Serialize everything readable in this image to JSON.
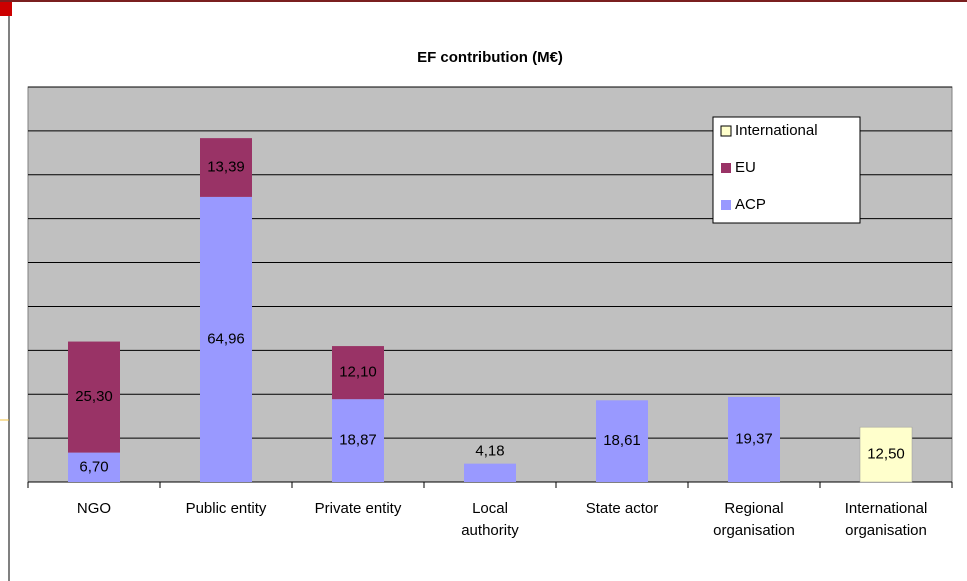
{
  "chart_data": {
    "type": "stacked_bar",
    "title": "EF contribution (M€)",
    "categories": [
      "NGO",
      "Public entity",
      "Private entity",
      "Local\nauthority",
      "State actor",
      "Regional\norganisation",
      "International\norganisation"
    ],
    "series": [
      {
        "name": "ACP",
        "color": "#9999ff",
        "values": [
          6.7,
          64.96,
          18.87,
          4.18,
          18.61,
          19.37,
          null
        ],
        "value_labels": [
          "6,70",
          "64,96",
          "18,87",
          "4,18",
          "18,61",
          "19,37",
          null
        ]
      },
      {
        "name": "EU",
        "color": "#993366",
        "values": [
          25.3,
          13.39,
          12.1,
          null,
          null,
          null,
          null
        ],
        "value_labels": [
          "25,30",
          "13,39",
          "12,10",
          null,
          null,
          null,
          null
        ]
      },
      {
        "name": "International",
        "color": "#ffffcc",
        "values": [
          null,
          null,
          null,
          null,
          null,
          null,
          12.5
        ],
        "value_labels": [
          null,
          null,
          null,
          null,
          null,
          null,
          "12,50"
        ]
      }
    ],
    "ylim": [
      0,
      90
    ],
    "yticks": [
      0,
      10,
      20,
      30,
      40,
      50,
      60,
      70,
      80,
      90
    ],
    "grid": true,
    "legend": "top-right"
  }
}
